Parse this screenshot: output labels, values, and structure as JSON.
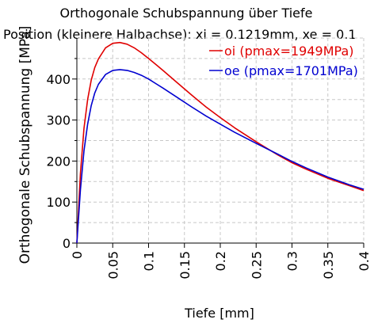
{
  "chart_data": {
    "type": "line",
    "title": "Orthogonale Schubspannung über Tiefe",
    "subtitle": "Position (kleinere Halbachse): xi = 0.1219mm, xe = 0.1",
    "xlabel": "Tiefe [mm]",
    "ylabel": "Orthogonale Schubspannung [MPa]",
    "xlim": [
      0,
      0.4
    ],
    "ylim": [
      0,
      500
    ],
    "xticks": [
      "0",
      "0.05",
      "0.1",
      "0.15",
      "0.2",
      "0.25",
      "0.3",
      "0.35",
      "0.4"
    ],
    "yticks": [
      "0",
      "100",
      "200",
      "300",
      "400"
    ],
    "grid": true,
    "legend_position": "top-right",
    "series": [
      {
        "name": "oi (pmax=1949MPa)",
        "color": "#e00000",
        "x": [
          0,
          0.005,
          0.01,
          0.015,
          0.02,
          0.025,
          0.03,
          0.04,
          0.05,
          0.06,
          0.07,
          0.08,
          0.09,
          0.1,
          0.11,
          0.12,
          0.14,
          0.16,
          0.18,
          0.2,
          0.22,
          0.25,
          0.28,
          0.3,
          0.32,
          0.35,
          0.38,
          0.4
        ],
        "y": [
          0,
          170,
          280,
          350,
          397,
          428,
          449,
          476,
          487,
          489,
          485,
          476,
          464,
          450,
          436,
          421,
          391,
          361,
          332,
          306,
          281,
          247,
          215,
          196,
          180,
          158,
          140,
          128
        ]
      },
      {
        "name": "oe (pmax=1701MPa)",
        "color": "#0000d0",
        "x": [
          0,
          0.005,
          0.01,
          0.015,
          0.02,
          0.025,
          0.03,
          0.04,
          0.05,
          0.06,
          0.07,
          0.08,
          0.09,
          0.1,
          0.11,
          0.12,
          0.14,
          0.16,
          0.18,
          0.2,
          0.22,
          0.25,
          0.28,
          0.3,
          0.32,
          0.35,
          0.38,
          0.4
        ],
        "y": [
          0,
          130,
          225,
          290,
          335,
          366,
          387,
          411,
          421,
          423,
          421,
          416,
          409,
          400,
          389,
          378,
          355,
          332,
          310,
          290,
          270,
          243,
          217,
          199,
          183,
          161,
          142,
          131
        ]
      }
    ]
  }
}
